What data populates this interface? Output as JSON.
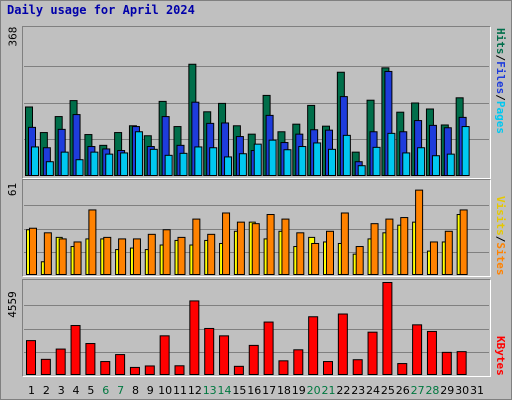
{
  "title": "Daily usage for April 2024",
  "colors": {
    "hits": "#006e4a",
    "files": "#1e3cdc",
    "pages": "#00c8f0",
    "visits": "#ffff00",
    "sites": "#ff8200",
    "kbytes": "#ff0000",
    "weekend_day_label": "#007840"
  },
  "legend": {
    "top": {
      "pages": "Pages",
      "files": "Files",
      "hits": "Hits",
      "sep": "/"
    },
    "middle": {
      "sites": "Sites",
      "visits": "Visits",
      "sep": "/"
    },
    "bottom": {
      "kbytes": "KBytes"
    }
  },
  "chart_data": [
    {
      "type": "bar",
      "panel": "top",
      "ymax_label": "368",
      "ylim": [
        0,
        368
      ],
      "categories": [
        "1",
        "2",
        "3",
        "4",
        "5",
        "6",
        "7",
        "8",
        "9",
        "10",
        "11",
        "12",
        "13",
        "14",
        "15",
        "16",
        "17",
        "18",
        "19",
        "20",
        "21",
        "22",
        "23",
        "24",
        "25",
        "26",
        "27",
        "28",
        "29",
        "30",
        "31"
      ],
      "series": [
        {
          "name": "Hits",
          "values": [
            174,
            110,
            150,
            190,
            105,
            78,
            110,
            127,
            102,
            188,
            125,
            281,
            162,
            183,
            127,
            106,
            203,
            112,
            131,
            178,
            126,
            261,
            61,
            191,
            272,
            161,
            184,
            169,
            129,
            197,
            0
          ]
        },
        {
          "name": "Files",
          "values": [
            123,
            72,
            118,
            155,
            75,
            69,
            65,
            125,
            75,
            150,
            78,
            186,
            133,
            134,
            100,
            65,
            153,
            85,
            106,
            117,
            116,
            200,
            37,
            112,
            263,
            112,
            140,
            128,
            122,
            148,
            0
          ]
        },
        {
          "name": "Pages",
          "values": [
            74,
            37,
            61,
            42,
            61,
            56,
            59,
            112,
            68,
            53,
            58,
            74,
            72,
            49,
            57,
            81,
            91,
            67,
            75,
            84,
            68,
            103,
            27,
            73,
            108,
            59,
            72,
            52,
            56,
            125,
            0
          ]
        }
      ]
    },
    {
      "type": "bar",
      "panel": "middle",
      "ymax_label": "61",
      "ylim": [
        0,
        61
      ],
      "categories": [
        "1",
        "2",
        "3",
        "4",
        "5",
        "6",
        "7",
        "8",
        "9",
        "10",
        "11",
        "12",
        "13",
        "14",
        "15",
        "16",
        "17",
        "18",
        "19",
        "20",
        "21",
        "22",
        "23",
        "24",
        "25",
        "26",
        "27",
        "28",
        "29",
        "30",
        "31"
      ],
      "series": [
        {
          "name": "Visits",
          "values": [
            30,
            9,
            25,
            19,
            24,
            24,
            17,
            18,
            17,
            20,
            23,
            20,
            23,
            21,
            29,
            35,
            24,
            29,
            19,
            25,
            22,
            21,
            14,
            24,
            28,
            33,
            35,
            16,
            22,
            40,
            0
          ]
        },
        {
          "name": "Sites",
          "values": [
            31,
            28,
            24,
            22,
            43,
            25,
            24,
            24,
            27,
            30,
            25,
            37,
            27,
            41,
            35,
            34,
            40,
            37,
            28,
            21,
            29,
            41,
            19,
            34,
            37,
            38,
            56,
            22,
            29,
            43,
            0
          ]
        }
      ]
    },
    {
      "type": "bar",
      "panel": "bottom",
      "ymax_label": "4559",
      "ylim": [
        0,
        4559
      ],
      "categories": [
        "1",
        "2",
        "3",
        "4",
        "5",
        "6",
        "7",
        "8",
        "9",
        "10",
        "11",
        "12",
        "13",
        "14",
        "15",
        "16",
        "17",
        "18",
        "19",
        "20",
        "21",
        "22",
        "23",
        "24",
        "25",
        "26",
        "27",
        "28",
        "29",
        "30",
        "31"
      ],
      "series": [
        {
          "name": "KBytes",
          "values": [
            1710,
            792,
            1296,
            2450,
            1567,
            684,
            1026,
            396,
            468,
            1945,
            477,
            3656,
            2306,
            1944,
            449,
            1476,
            2620,
            720,
            1260,
            2880,
            684,
            3014,
            774,
            2124,
            4559,
            585,
            2484,
            2160,
            1134,
            1170,
            0
          ]
        }
      ]
    }
  ]
}
